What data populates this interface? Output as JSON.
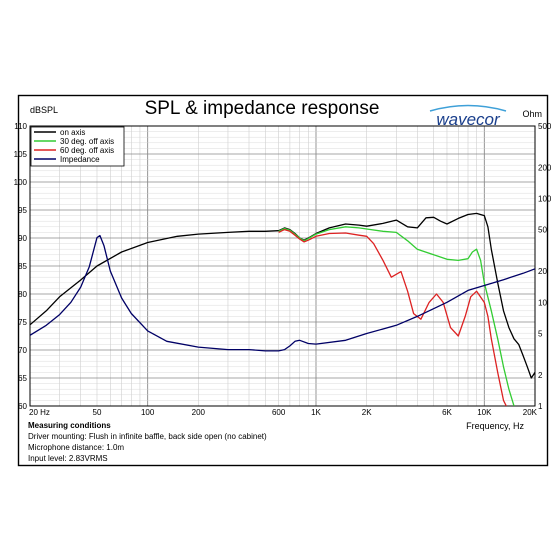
{
  "brand": "wavecor",
  "chart_data": {
    "type": "line",
    "title": "SPL & impedance response",
    "ylabel": "dBSPL",
    "y2label": "Ohm",
    "xlabel": "Frequency, Hz",
    "xscale": "log",
    "xlim": [
      20,
      20000
    ],
    "ylim": [
      60,
      110
    ],
    "y2scale": "log",
    "y2lim": [
      1,
      500
    ],
    "grid": true,
    "legend_position": "top-left",
    "x_ticks": [
      {
        "value": 20,
        "label": "20 Hz"
      },
      {
        "value": 50,
        "label": "50"
      },
      {
        "value": 100,
        "label": "100"
      },
      {
        "value": 200,
        "label": "200"
      },
      {
        "value": 600,
        "label": "600"
      },
      {
        "value": 1000,
        "label": "1K"
      },
      {
        "value": 2000,
        "label": "2K"
      },
      {
        "value": 6000,
        "label": "6K"
      },
      {
        "value": 10000,
        "label": "10K"
      },
      {
        "value": 20000,
        "label": "20K"
      }
    ],
    "y_ticks": [
      {
        "value": 110,
        "label": "110"
      },
      {
        "value": 105,
        "label": "105"
      },
      {
        "value": 100,
        "label": "100"
      },
      {
        "value": 95,
        "label": "95"
      },
      {
        "value": 90,
        "label": "90"
      },
      {
        "value": 85,
        "label": "85"
      },
      {
        "value": 80,
        "label": "80"
      },
      {
        "value": 75,
        "label": "75"
      },
      {
        "value": 70,
        "label": "70"
      },
      {
        "value": 65,
        "label": "65"
      },
      {
        "value": 60,
        "label": "60"
      }
    ],
    "y2_ticks": [
      {
        "value": 500,
        "label": "500"
      },
      {
        "value": 200,
        "label": "200"
      },
      {
        "value": 100,
        "label": "100"
      },
      {
        "value": 50,
        "label": "50"
      },
      {
        "value": 20,
        "label": "20"
      },
      {
        "value": 10,
        "label": "10"
      },
      {
        "value": 5,
        "label": "5"
      },
      {
        "value": 2,
        "label": "2"
      },
      {
        "value": 1,
        "label": "1"
      }
    ],
    "series": [
      {
        "name": "on axis",
        "axis": "left",
        "color": "#000000",
        "points": [
          [
            20,
            74.5
          ],
          [
            25,
            77
          ],
          [
            30,
            79.5
          ],
          [
            40,
            82.5
          ],
          [
            50,
            85
          ],
          [
            70,
            87.5
          ],
          [
            100,
            89.2
          ],
          [
            150,
            90.3
          ],
          [
            200,
            90.7
          ],
          [
            300,
            91
          ],
          [
            400,
            91.2
          ],
          [
            500,
            91.2
          ],
          [
            600,
            91.3
          ],
          [
            650,
            91.8
          ],
          [
            700,
            91.5
          ],
          [
            750,
            90.8
          ],
          [
            800,
            90
          ],
          [
            850,
            89.6
          ],
          [
            900,
            90
          ],
          [
            1000,
            90.8
          ],
          [
            1200,
            91.8
          ],
          [
            1500,
            92.5
          ],
          [
            1800,
            92.3
          ],
          [
            2000,
            92.1
          ],
          [
            2500,
            92.6
          ],
          [
            3000,
            93.2
          ],
          [
            3500,
            92
          ],
          [
            4000,
            91.8
          ],
          [
            4500,
            93.6
          ],
          [
            5000,
            93.7
          ],
          [
            5500,
            93
          ],
          [
            6000,
            92.5
          ],
          [
            7000,
            93.5
          ],
          [
            8000,
            94.2
          ],
          [
            9000,
            94.4
          ],
          [
            10000,
            94
          ],
          [
            10500,
            92
          ],
          [
            11000,
            88
          ],
          [
            12000,
            82
          ],
          [
            13000,
            77
          ],
          [
            14000,
            74
          ],
          [
            15000,
            72
          ],
          [
            16000,
            71
          ],
          [
            17000,
            69
          ],
          [
            18000,
            67
          ],
          [
            19000,
            65
          ],
          [
            20000,
            66
          ]
        ]
      },
      {
        "name": "30 deg. off axis",
        "axis": "left",
        "color": "#33cc33",
        "points": [
          [
            600,
            91.2
          ],
          [
            650,
            91.7
          ],
          [
            700,
            91.4
          ],
          [
            750,
            90.7
          ],
          [
            800,
            90
          ],
          [
            850,
            89.5
          ],
          [
            900,
            89.9
          ],
          [
            1000,
            90.7
          ],
          [
            1200,
            91.5
          ],
          [
            1500,
            92
          ],
          [
            1800,
            91.8
          ],
          [
            2000,
            91.6
          ],
          [
            2500,
            91.2
          ],
          [
            3000,
            91
          ],
          [
            3500,
            89.5
          ],
          [
            4000,
            88
          ],
          [
            5000,
            87
          ],
          [
            6000,
            86.2
          ],
          [
            7000,
            86
          ],
          [
            8000,
            86.3
          ],
          [
            8500,
            87.5
          ],
          [
            9000,
            88
          ],
          [
            9500,
            86
          ],
          [
            10000,
            82
          ],
          [
            11000,
            77
          ],
          [
            12000,
            72
          ],
          [
            13000,
            67
          ],
          [
            14000,
            63
          ],
          [
            15000,
            60
          ]
        ]
      },
      {
        "name": "60 deg. off axis",
        "axis": "left",
        "color": "#dd2222",
        "points": [
          [
            600,
            91
          ],
          [
            650,
            91.5
          ],
          [
            700,
            91.2
          ],
          [
            750,
            90.5
          ],
          [
            800,
            89.8
          ],
          [
            850,
            89.3
          ],
          [
            900,
            89.6
          ],
          [
            1000,
            90.3
          ],
          [
            1200,
            90.8
          ],
          [
            1500,
            90.9
          ],
          [
            1800,
            90.5
          ],
          [
            2000,
            90.3
          ],
          [
            2200,
            89
          ],
          [
            2500,
            86
          ],
          [
            2800,
            83
          ],
          [
            3200,
            84
          ],
          [
            3500,
            80.5
          ],
          [
            3800,
            76.5
          ],
          [
            4200,
            75.5
          ],
          [
            4700,
            78.5
          ],
          [
            5200,
            80
          ],
          [
            5700,
            78.5
          ],
          [
            6300,
            74
          ],
          [
            7000,
            72.5
          ],
          [
            7700,
            76
          ],
          [
            8300,
            79.5
          ],
          [
            9000,
            80.5
          ],
          [
            10000,
            78.5
          ],
          [
            10500,
            76
          ],
          [
            11000,
            72
          ],
          [
            12000,
            66
          ],
          [
            13000,
            61
          ],
          [
            13500,
            60
          ]
        ]
      },
      {
        "name": "Impedance",
        "axis": "right",
        "color": "#000066",
        "points": [
          [
            20,
            4.8
          ],
          [
            25,
            6
          ],
          [
            30,
            7.6
          ],
          [
            35,
            10
          ],
          [
            40,
            14
          ],
          [
            45,
            22
          ],
          [
            50,
            42
          ],
          [
            52,
            44
          ],
          [
            55,
            35
          ],
          [
            60,
            20
          ],
          [
            70,
            11
          ],
          [
            80,
            7.8
          ],
          [
            100,
            5.3
          ],
          [
            130,
            4.2
          ],
          [
            200,
            3.7
          ],
          [
            300,
            3.5
          ],
          [
            400,
            3.5
          ],
          [
            500,
            3.4
          ],
          [
            600,
            3.4
          ],
          [
            650,
            3.5
          ],
          [
            700,
            3.8
          ],
          [
            750,
            4.2
          ],
          [
            800,
            4.3
          ],
          [
            900,
            4
          ],
          [
            1000,
            3.95
          ],
          [
            1500,
            4.3
          ],
          [
            2000,
            5
          ],
          [
            3000,
            6
          ],
          [
            4000,
            7.3
          ],
          [
            6000,
            10
          ],
          [
            8000,
            13
          ],
          [
            10000,
            14.5
          ],
          [
            13000,
            16.5
          ],
          [
            17000,
            19
          ],
          [
            20000,
            21
          ]
        ]
      }
    ]
  },
  "conditions": {
    "heading": "Measuring conditions",
    "lines": [
      "Driver mounting: Flush in infinite baffle, back side open (no cabinet)",
      "Microphone distance: 1.0m",
      "Input level: 2.83VRMS"
    ]
  }
}
